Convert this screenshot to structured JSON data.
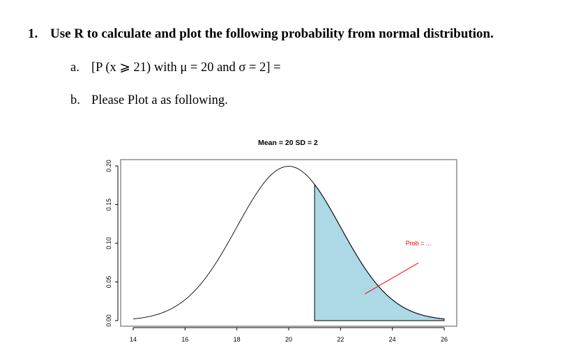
{
  "question": {
    "number": "1.",
    "text": "Use R to calculate and plot the following probability from normal distribution."
  },
  "items": [
    {
      "label": "a.",
      "text": "[P (x ⩾ 21) with μ = 20 and  σ  = 2] ="
    },
    {
      "label": "b.",
      "text": "Please Plot a as following."
    }
  ],
  "chart_data": {
    "type": "area",
    "title": "Mean = 20 SD = 2",
    "xlabel": "",
    "ylabel": "",
    "mean": 20,
    "sd": 2,
    "x_range": [
      14,
      26
    ],
    "ylim": [
      0,
      0.2
    ],
    "shade_from": 21,
    "shade_to": 26,
    "shade_color": "#add8e6",
    "x_ticks": [
      "14",
      "16",
      "18",
      "20",
      "22",
      "24",
      "26"
    ],
    "y_ticks": [
      "0.00",
      "0.05",
      "0.10",
      "0.15",
      "0.20"
    ],
    "annotation": {
      "text": "Prob = ...",
      "color": "#ff0000",
      "from": [
        26,
        0.08
      ],
      "to": [
        23,
        0.04
      ]
    }
  }
}
